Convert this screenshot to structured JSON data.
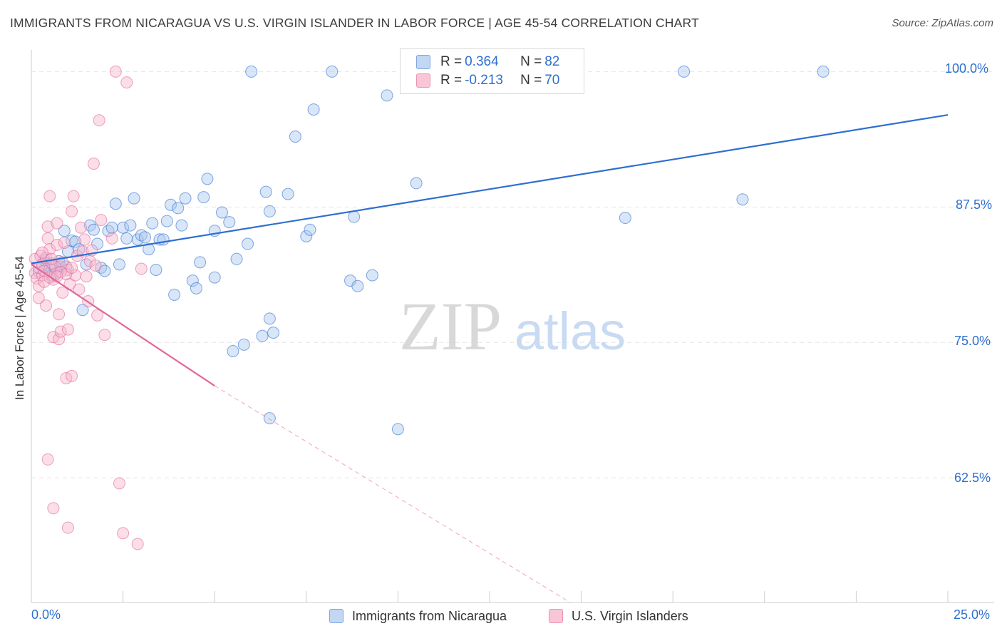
{
  "header": {
    "title": "IMMIGRANTS FROM NICARAGUA VS U.S. VIRGIN ISLANDER IN LABOR FORCE | AGE 45-54 CORRELATION CHART",
    "source": "Source: ZipAtlas.com"
  },
  "watermark": {
    "zip": "ZIP",
    "atlas": "atlas"
  },
  "colors": {
    "blue": "#2f6fd0",
    "blue_fill": "#aac8f0",
    "pink": "#e0679a",
    "pink_fill": "#f6b6cb",
    "grid": "#e6e6e6"
  },
  "legend_top": {
    "rows": [
      {
        "r_label": "R = ",
        "r_value": "0.364",
        "n_label": "N = ",
        "n_value": "82"
      },
      {
        "r_label": "R = ",
        "r_value": "-0.213",
        "n_label": "N = ",
        "n_value": "70"
      }
    ]
  },
  "chart_data": {
    "type": "scatter",
    "title": "IMMIGRANTS FROM NICARAGUA VS U.S. VIRGIN ISLANDER IN LABOR FORCE | AGE 45-54 CORRELATION CHART",
    "xlabel": "",
    "ylabel": "In Labor Force | Age 45-54",
    "xlim": [
      0,
      25
    ],
    "ylim": [
      51,
      102
    ],
    "x_tick_labels": [
      "0.0%",
      "25.0%"
    ],
    "y_ticks": [
      62.5,
      75.0,
      87.5,
      100.0
    ],
    "y_tick_labels": [
      "62.5%",
      "75.0%",
      "87.5%",
      "100.0%"
    ],
    "grid": true,
    "legend": "bottom-center",
    "series": [
      {
        "name": "Immigrants from Nicaragua",
        "color": "blue",
        "R": 0.364,
        "N": 82,
        "trend": {
          "x": [
            0.0,
            25.0
          ],
          "y": [
            82.3,
            96.0
          ],
          "dashed_to": null
        },
        "points": [
          [
            0.3,
            82.0
          ],
          [
            0.4,
            82.3
          ],
          [
            0.5,
            81.8
          ],
          [
            0.6,
            82.1
          ],
          [
            0.7,
            81.4
          ],
          [
            0.8,
            82.0
          ],
          [
            0.9,
            85.3
          ],
          [
            1.0,
            83.4
          ],
          [
            1.1,
            84.4
          ],
          [
            1.2,
            84.3
          ],
          [
            1.3,
            83.6
          ],
          [
            1.4,
            78.0
          ],
          [
            1.5,
            82.2
          ],
          [
            1.6,
            85.8
          ],
          [
            1.7,
            85.4
          ],
          [
            1.8,
            84.1
          ],
          [
            1.9,
            81.9
          ],
          [
            2.0,
            81.6
          ],
          [
            2.1,
            85.3
          ],
          [
            2.2,
            85.6
          ],
          [
            2.3,
            87.8
          ],
          [
            2.4,
            82.2
          ],
          [
            2.5,
            85.6
          ],
          [
            2.6,
            84.6
          ],
          [
            2.7,
            85.8
          ],
          [
            2.8,
            88.3
          ],
          [
            2.9,
            84.5
          ],
          [
            3.0,
            84.9
          ],
          [
            3.1,
            84.7
          ],
          [
            3.2,
            83.6
          ],
          [
            3.3,
            86.0
          ],
          [
            3.4,
            81.7
          ],
          [
            3.5,
            84.5
          ],
          [
            3.6,
            84.5
          ],
          [
            3.7,
            86.2
          ],
          [
            3.8,
            87.7
          ],
          [
            3.9,
            79.4
          ],
          [
            4.0,
            87.4
          ],
          [
            4.1,
            85.8
          ],
          [
            4.2,
            88.3
          ],
          [
            4.4,
            80.7
          ],
          [
            4.5,
            80.0
          ],
          [
            4.6,
            82.4
          ],
          [
            4.7,
            88.4
          ],
          [
            4.8,
            90.1
          ],
          [
            5.0,
            81.0
          ],
          [
            5.0,
            85.3
          ],
          [
            5.2,
            87.0
          ],
          [
            5.4,
            86.1
          ],
          [
            5.5,
            74.2
          ],
          [
            5.6,
            82.7
          ],
          [
            5.8,
            74.8
          ],
          [
            5.9,
            84.1
          ],
          [
            6.0,
            100.0
          ],
          [
            6.3,
            75.6
          ],
          [
            6.4,
            88.9
          ],
          [
            6.5,
            77.2
          ],
          [
            6.6,
            75.9
          ],
          [
            6.5,
            87.1
          ],
          [
            6.5,
            68.0
          ],
          [
            7.0,
            88.7
          ],
          [
            7.2,
            94.0
          ],
          [
            7.5,
            84.8
          ],
          [
            7.6,
            85.4
          ],
          [
            7.7,
            96.5
          ],
          [
            8.2,
            100.0
          ],
          [
            8.7,
            80.7
          ],
          [
            8.8,
            86.6
          ],
          [
            8.9,
            80.2
          ],
          [
            9.3,
            81.2
          ],
          [
            9.7,
            97.8
          ],
          [
            10.0,
            67.0
          ],
          [
            10.5,
            89.7
          ],
          [
            16.2,
            86.5
          ],
          [
            17.8,
            100.0
          ],
          [
            19.4,
            88.2
          ],
          [
            21.6,
            100.0
          ],
          [
            0.2,
            81.5
          ],
          [
            0.35,
            82.6
          ],
          [
            0.55,
            81.2
          ],
          [
            0.75,
            82.5
          ],
          [
            0.95,
            82.0
          ]
        ]
      },
      {
        "name": "U.S. Virgin Islanders",
        "color": "pink",
        "R": -0.213,
        "N": 70,
        "trend": {
          "x": [
            0.0,
            5.0
          ],
          "y": [
            82.2,
            71.0
          ],
          "dashed_to": [
            14.7,
            51.0
          ]
        },
        "points": [
          [
            0.1,
            82.7
          ],
          [
            0.1,
            81.4
          ],
          [
            0.15,
            80.9
          ],
          [
            0.2,
            80.2
          ],
          [
            0.2,
            79.1
          ],
          [
            0.25,
            83.0
          ],
          [
            0.3,
            82.2
          ],
          [
            0.3,
            81.2
          ],
          [
            0.35,
            80.6
          ],
          [
            0.4,
            78.4
          ],
          [
            0.4,
            82.8
          ],
          [
            0.45,
            85.7
          ],
          [
            0.45,
            84.6
          ],
          [
            0.5,
            88.5
          ],
          [
            0.5,
            83.6
          ],
          [
            0.55,
            82.3
          ],
          [
            0.6,
            80.8
          ],
          [
            0.6,
            75.5
          ],
          [
            0.65,
            81.3
          ],
          [
            0.7,
            86.0
          ],
          [
            0.7,
            84.0
          ],
          [
            0.75,
            77.6
          ],
          [
            0.75,
            75.3
          ],
          [
            0.8,
            76.0
          ],
          [
            0.85,
            79.6
          ],
          [
            0.85,
            82.4
          ],
          [
            0.9,
            84.2
          ],
          [
            0.95,
            71.7
          ],
          [
            1.0,
            81.7
          ],
          [
            1.0,
            76.2
          ],
          [
            1.05,
            80.4
          ],
          [
            1.1,
            87.1
          ],
          [
            1.1,
            71.9
          ],
          [
            1.15,
            88.5
          ],
          [
            1.2,
            81.2
          ],
          [
            1.25,
            83.0
          ],
          [
            1.3,
            79.9
          ],
          [
            1.35,
            85.6
          ],
          [
            1.4,
            83.4
          ],
          [
            1.45,
            84.5
          ],
          [
            1.5,
            81.1
          ],
          [
            1.55,
            78.8
          ],
          [
            1.6,
            82.5
          ],
          [
            1.65,
            83.5
          ],
          [
            1.7,
            91.5
          ],
          [
            1.75,
            82.1
          ],
          [
            1.8,
            77.5
          ],
          [
            1.85,
            95.5
          ],
          [
            1.9,
            86.3
          ],
          [
            2.0,
            75.7
          ],
          [
            2.2,
            84.6
          ],
          [
            2.3,
            100.0
          ],
          [
            2.4,
            62.0
          ],
          [
            2.5,
            57.4
          ],
          [
            2.6,
            99.0
          ],
          [
            2.9,
            56.4
          ],
          [
            3.0,
            81.8
          ],
          [
            0.45,
            64.2
          ],
          [
            0.6,
            59.7
          ],
          [
            1.0,
            57.9
          ],
          [
            0.2,
            81.9
          ],
          [
            0.35,
            81.6
          ],
          [
            0.5,
            81.0
          ],
          [
            0.65,
            82.0
          ],
          [
            0.8,
            81.5
          ],
          [
            0.95,
            81.3
          ],
          [
            1.1,
            81.9
          ],
          [
            0.3,
            83.3
          ],
          [
            0.55,
            82.7
          ],
          [
            0.7,
            81.1
          ]
        ]
      }
    ]
  },
  "legend_bottom": {
    "items": [
      {
        "label": "Immigrants from Nicaragua",
        "color": "blue"
      },
      {
        "label": "U.S. Virgin Islanders",
        "color": "pink"
      }
    ]
  }
}
